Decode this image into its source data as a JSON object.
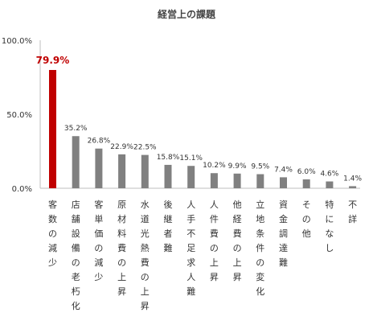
{
  "chart_data": {
    "type": "bar",
    "title": "経営上の課題",
    "categories": [
      "客数の減少",
      "店舗設備の老朽化",
      "客単価の減少",
      "原材料費の上昇",
      "水道光熱費の上昇",
      "後継者難",
      "人手不足求人難",
      "人件費の上昇",
      "他経費の上昇",
      "立地条件の変化",
      "資金調達難",
      "その他",
      "特になし",
      "不詳"
    ],
    "values": [
      79.9,
      35.2,
      26.8,
      22.9,
      22.5,
      15.8,
      15.1,
      10.2,
      9.9,
      9.5,
      7.4,
      6.0,
      4.6,
      1.4
    ],
    "value_labels": [
      "79.9%",
      "35.2%",
      "26.8%",
      "22.9%",
      "22.5%",
      "15.8%",
      "15.1%",
      "10.2%",
      "9.9%",
      "9.5%",
      "7.4%",
      "6.0%",
      "4.6%",
      "1.4%"
    ],
    "y_ticks": [
      0,
      50,
      100
    ],
    "y_tick_labels": [
      "0.0%",
      "50.0%",
      "100.0%"
    ],
    "ylim": [
      0,
      100
    ],
    "grid": false,
    "highlight_index": 0,
    "colors": {
      "bar": "#808080",
      "highlight": "#c00000",
      "axis": "#bfbfbf"
    }
  }
}
